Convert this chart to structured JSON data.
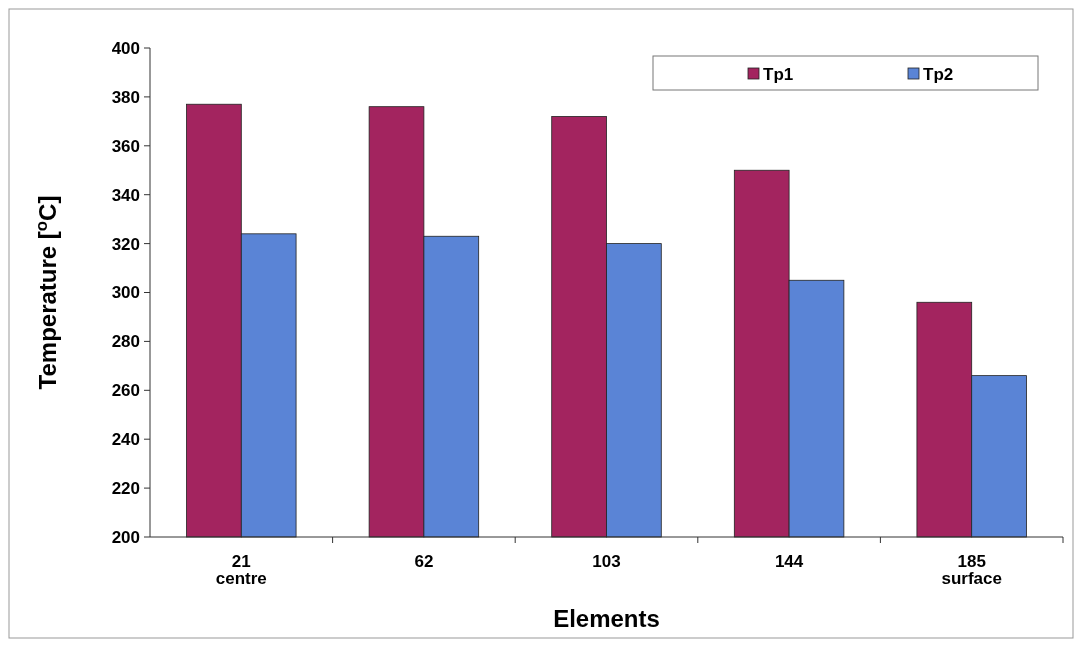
{
  "chart_data": {
    "type": "bar",
    "xlabel": "Elements",
    "ylabel": "Temperature [$^{o}$C]",
    "categories": [
      "21\ncentre",
      "62",
      "103",
      "144",
      "185\nsurface"
    ],
    "series": [
      {
        "name": "Tp1",
        "color": "#a3245f",
        "values": [
          377,
          376,
          372,
          350,
          296
        ]
      },
      {
        "name": "Tp2",
        "color": "#5a84d6",
        "values": [
          324,
          323,
          320,
          305,
          266
        ]
      }
    ],
    "ylim": [
      200,
      400
    ],
    "yticks": [
      200,
      220,
      240,
      260,
      280,
      300,
      320,
      340,
      360,
      380,
      400
    ],
    "grid": false,
    "legend": "top right"
  }
}
